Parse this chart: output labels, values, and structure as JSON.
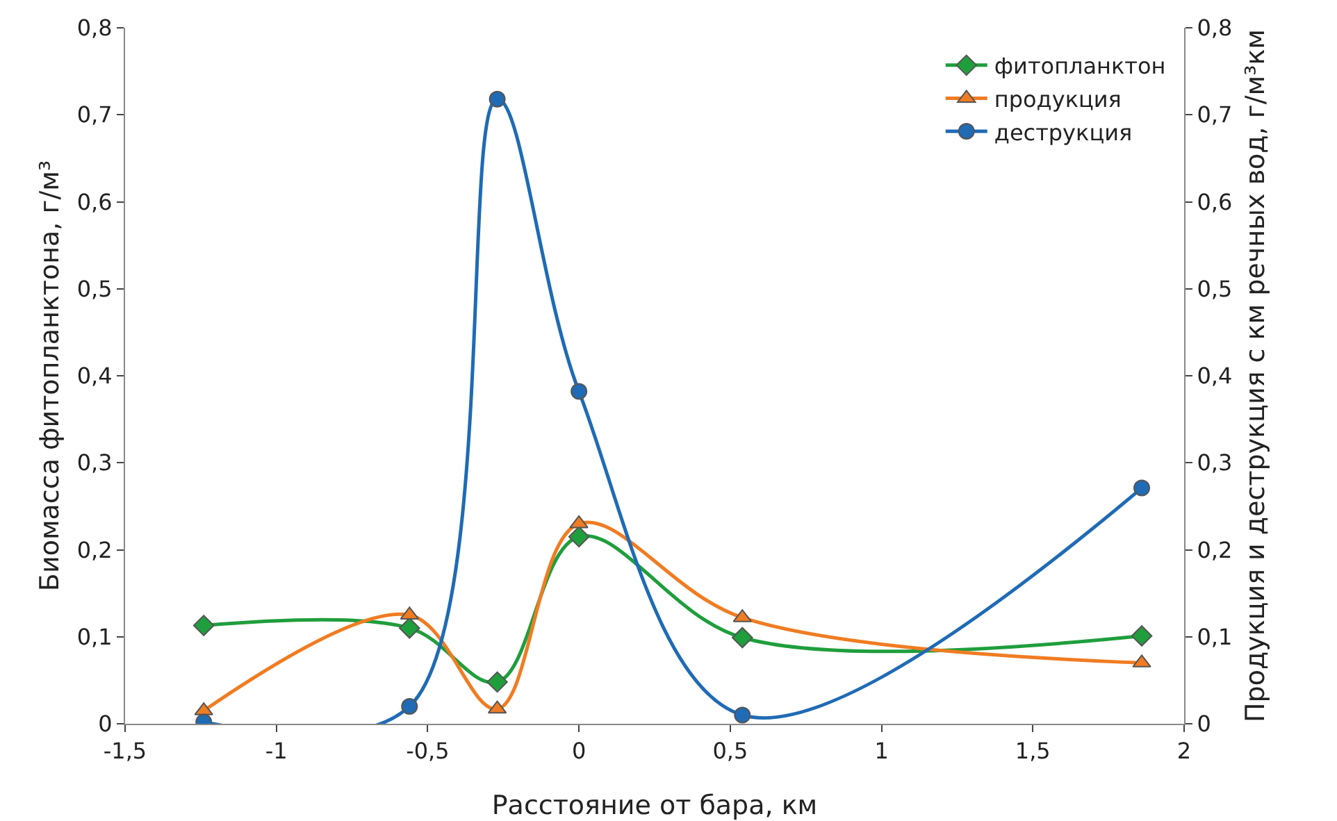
{
  "chart_data": {
    "type": "line",
    "xlabel": "Расстояние от бара, км",
    "ylabel": "Биомасса фитопланктона, г/м³",
    "y2label": "Продукция и деструкция с км речных вод, г/м³км",
    "x": [
      -1.24,
      -0.56,
      -0.27,
      0,
      0.54,
      1.86
    ],
    "series": [
      {
        "name": "фитопланктон",
        "color": "#1f9e3c",
        "marker": "diamond",
        "values": [
          0.113,
          0.11,
          0.048,
          0.215,
          0.099,
          0.101
        ]
      },
      {
        "name": "продукция",
        "color": "#f07c22",
        "marker": "triangle",
        "axis": "y2",
        "values": [
          0.015,
          0.125,
          0.017,
          0.23,
          0.122,
          0.07
        ]
      },
      {
        "name": "деструкция",
        "color": "#1f6bb5",
        "marker": "circle",
        "axis": "y2",
        "values": [
          0.002,
          0.02,
          0.718,
          0.382,
          0.01,
          0.271
        ]
      }
    ],
    "xlim": [
      -1.5,
      2
    ],
    "xticks": [
      {
        "value": -1.5,
        "label": "-1,5"
      },
      -1,
      {
        "value": -0.5,
        "label": "-0,5"
      },
      0,
      {
        "value": 0.5,
        "label": "0,5"
      },
      1,
      {
        "value": 1.5,
        "label": "1,5"
      },
      2
    ],
    "ylim": [
      0,
      0.8
    ],
    "yticks": [
      0,
      {
        "value": 0.1,
        "label": "0,1"
      },
      {
        "value": 0.2,
        "label": "0,2"
      },
      {
        "value": 0.3,
        "label": "0,3"
      },
      {
        "value": 0.4,
        "label": "0,4"
      },
      {
        "value": 0.5,
        "label": "0,5"
      },
      {
        "value": 0.6,
        "label": "0,6"
      },
      {
        "value": 0.7,
        "label": "0,7"
      },
      {
        "value": 0.8,
        "label": "0,8"
      }
    ],
    "y2lim": [
      0,
      0.8
    ],
    "y2ticks": [
      0,
      {
        "value": 0.1,
        "label": "0,1"
      },
      {
        "value": 0.2,
        "label": "0,2"
      },
      {
        "value": 0.3,
        "label": "0,3"
      },
      {
        "value": 0.4,
        "label": "0,4"
      },
      {
        "value": 0.5,
        "label": "0,5"
      },
      {
        "value": 0.6,
        "label": "0,6"
      },
      {
        "value": 0.7,
        "label": "0,7"
      },
      {
        "value": 0.8,
        "label": "0,8"
      }
    ],
    "legend": "top right",
    "grid": false,
    "line_style": "solid"
  }
}
